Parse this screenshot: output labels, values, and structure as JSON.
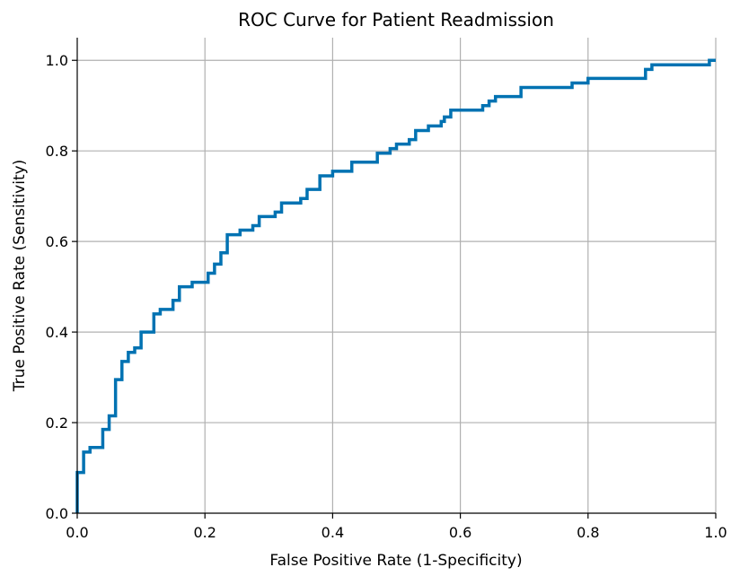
{
  "chart_data": {
    "type": "line",
    "title": "ROC Curve for Patient Readmission",
    "xlabel": "False Positive Rate (1-Specificity)",
    "ylabel": "True Positive Rate (Sensitivity)",
    "xlim": [
      0.0,
      1.0
    ],
    "ylim": [
      0.0,
      1.05
    ],
    "xticks": [
      "0.0",
      "0.2",
      "0.4",
      "0.6",
      "0.8",
      "1.0"
    ],
    "yticks": [
      "0.0",
      "0.2",
      "0.4",
      "0.6",
      "0.8",
      "1.0"
    ],
    "grid": true,
    "line_color": "#0072B2",
    "series": [
      {
        "x": [
          0.0,
          0.0,
          0.01,
          0.01,
          0.02,
          0.02,
          0.04,
          0.04,
          0.05,
          0.05,
          0.06,
          0.06,
          0.07,
          0.07,
          0.08,
          0.08,
          0.09,
          0.09,
          0.1,
          0.1,
          0.12,
          0.12,
          0.13,
          0.13,
          0.15,
          0.15,
          0.16,
          0.16,
          0.18,
          0.18,
          0.205,
          0.205,
          0.215,
          0.215,
          0.225,
          0.225,
          0.235,
          0.235,
          0.255,
          0.255,
          0.275,
          0.275,
          0.285,
          0.285,
          0.31,
          0.31,
          0.32,
          0.32,
          0.35,
          0.35,
          0.36,
          0.36,
          0.38,
          0.38,
          0.4,
          0.4,
          0.43,
          0.43,
          0.47,
          0.47,
          0.49,
          0.49,
          0.5,
          0.5,
          0.52,
          0.52,
          0.53,
          0.53,
          0.55,
          0.55,
          0.57,
          0.57,
          0.575,
          0.575,
          0.585,
          0.585,
          0.635,
          0.635,
          0.645,
          0.645,
          0.655,
          0.655,
          0.695,
          0.695,
          0.775,
          0.775,
          0.8,
          0.8,
          0.89,
          0.89,
          0.9,
          0.9,
          0.99,
          0.99,
          1.0
        ],
        "y": [
          0.0,
          0.09,
          0.09,
          0.135,
          0.135,
          0.145,
          0.145,
          0.185,
          0.185,
          0.215,
          0.215,
          0.295,
          0.295,
          0.335,
          0.335,
          0.355,
          0.355,
          0.365,
          0.365,
          0.4,
          0.4,
          0.44,
          0.44,
          0.45,
          0.45,
          0.47,
          0.47,
          0.5,
          0.5,
          0.51,
          0.51,
          0.53,
          0.53,
          0.55,
          0.55,
          0.575,
          0.575,
          0.615,
          0.615,
          0.625,
          0.625,
          0.635,
          0.635,
          0.655,
          0.655,
          0.665,
          0.665,
          0.685,
          0.685,
          0.695,
          0.695,
          0.715,
          0.715,
          0.745,
          0.745,
          0.755,
          0.755,
          0.775,
          0.775,
          0.795,
          0.795,
          0.805,
          0.805,
          0.815,
          0.815,
          0.825,
          0.825,
          0.845,
          0.845,
          0.855,
          0.855,
          0.865,
          0.865,
          0.875,
          0.875,
          0.89,
          0.89,
          0.9,
          0.9,
          0.91,
          0.91,
          0.92,
          0.92,
          0.94,
          0.94,
          0.95,
          0.95,
          0.96,
          0.96,
          0.98,
          0.98,
          0.99,
          0.99,
          1.0,
          1.0
        ]
      }
    ]
  }
}
